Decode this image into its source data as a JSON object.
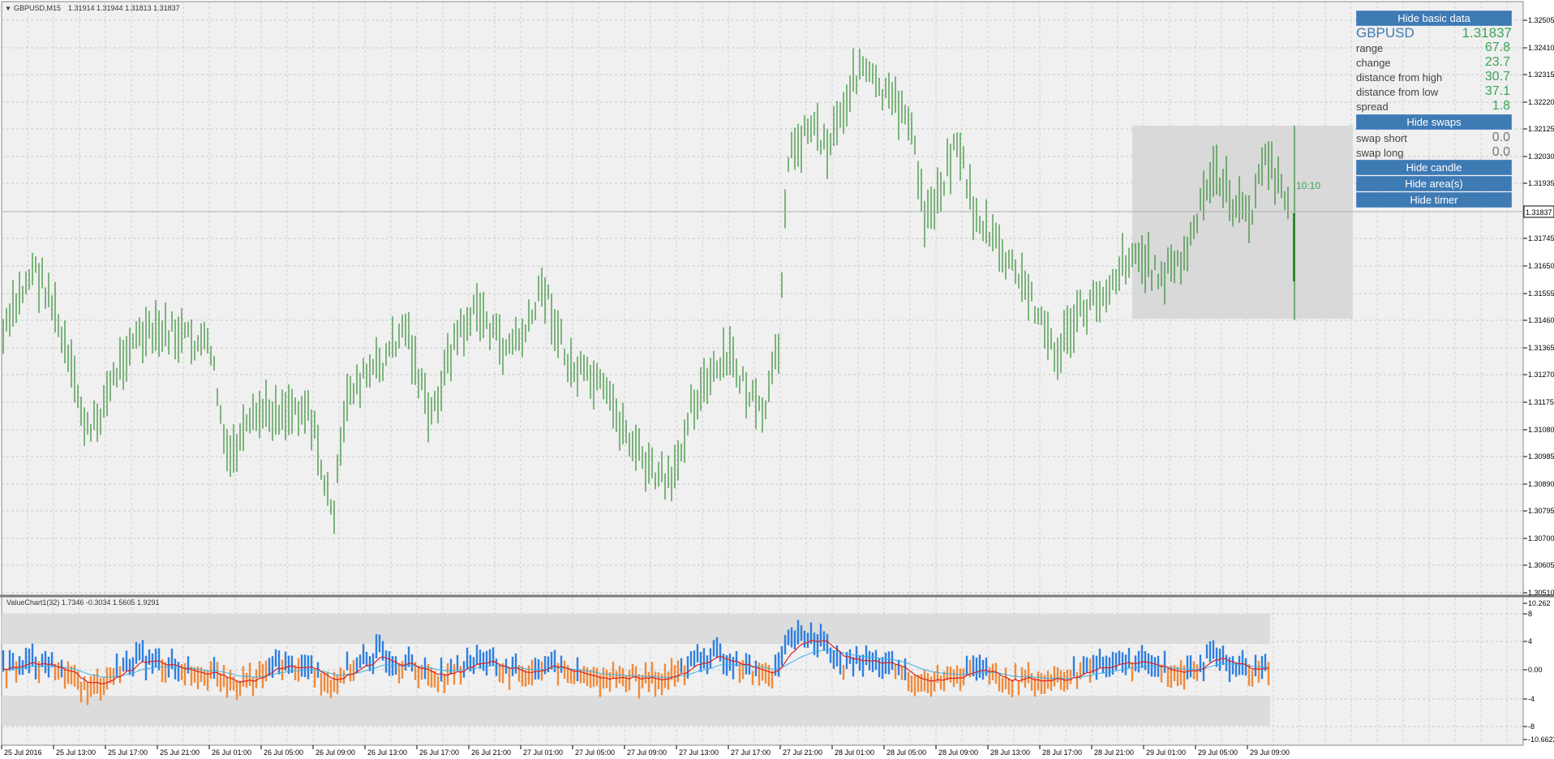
{
  "main_header": {
    "symbol_tf": "GBPUSD,M15",
    "ohlc": "1.31914 1.31944 1.31813 1.31837"
  },
  "current_price_label": "1.31837",
  "timer_text": "10:10",
  "price_axis_labels": [
    "1.32505",
    "1.32410",
    "1.32315",
    "1.32220",
    "1.32125",
    "1.32030",
    "1.31935",
    "1.31745",
    "1.31650",
    "1.31555",
    "1.31460",
    "1.31365",
    "1.31270",
    "1.31175",
    "1.31080",
    "1.30985",
    "1.30890",
    "1.30795",
    "1.30700",
    "1.30605",
    "1.30510"
  ],
  "indicator": {
    "header": "ValueChart1(32) 1.7346 -0.3034 1.5605 1.9291",
    "axis_labels": [
      "10.262",
      "8",
      "4",
      "0.00",
      "-4",
      "-8",
      "-10.6622"
    ]
  },
  "time_axis_labels": [
    "25 Jul 2016",
    "25 Jul 13:00",
    "25 Jul 17:00",
    "25 Jul 21:00",
    "26 Jul 01:00",
    "26 Jul 05:00",
    "26 Jul 09:00",
    "26 Jul 13:00",
    "26 Jul 17:00",
    "26 Jul 21:00",
    "27 Jul 01:00",
    "27 Jul 05:00",
    "27 Jul 09:00",
    "27 Jul 13:00",
    "27 Jul 17:00",
    "27 Jul 21:00",
    "28 Jul 01:00",
    "28 Jul 05:00",
    "28 Jul 09:00",
    "28 Jul 13:00",
    "28 Jul 17:00",
    "28 Jul 21:00",
    "29 Jul 01:00",
    "29 Jul 05:00",
    "29 Jul 09:00"
  ],
  "panel": {
    "hide_basic_data": "Hide basic data",
    "symbol": "GBPUSD",
    "price": "1.31837",
    "rows": [
      {
        "label": "range",
        "value": "67.8"
      },
      {
        "label": "change",
        "value": "23.7"
      },
      {
        "label": "distance from high",
        "value": "30.7"
      },
      {
        "label": "distance from low",
        "value": "37.1"
      },
      {
        "label": "spread",
        "value": "1.8"
      }
    ],
    "hide_swaps": "Hide swaps",
    "swaps": [
      {
        "label": "swap short",
        "value": "0.0"
      },
      {
        "label": "swap long",
        "value": "0.0"
      }
    ],
    "hide_candle": "Hide candle",
    "hide_areas": "Hide area(s)",
    "hide_timer": "Hide timer"
  },
  "colors": {
    "bar_color": "#2e8b2e",
    "indicator_up": "#2e7fe0",
    "indicator_down": "#f08a3a",
    "ma_fast": "#e02020",
    "ma_slow": "#3ab0e8",
    "range_box": "#d9d9d9",
    "button_bg": "#3e7ab4",
    "value_green": "#3aa357"
  }
}
